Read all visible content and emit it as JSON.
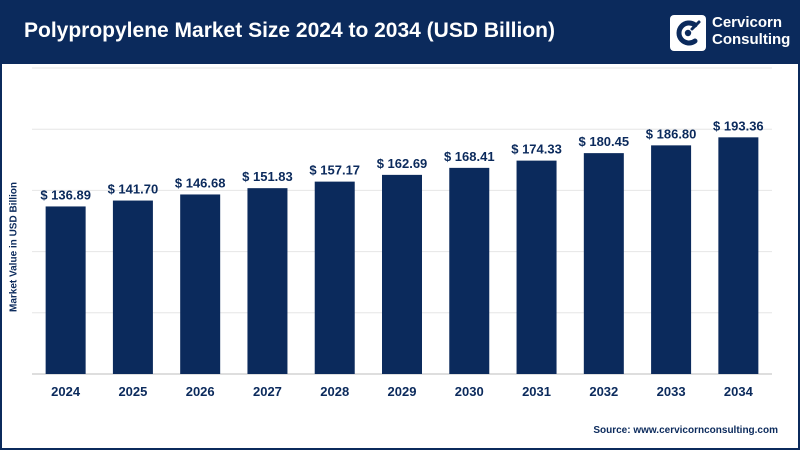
{
  "header": {
    "title": "Polypropylene Market Size 2024 to 2034 (USD Billion)",
    "logo_line1": "Cervicorn",
    "logo_line2": "Consulting",
    "logo_icon": "cervicorn-logo-icon"
  },
  "source": "Source: www.cervicornconsulting.com",
  "colors": {
    "bar": "#0b2a5c",
    "header": "#0b2a5c",
    "grid": "#e6e6e6"
  },
  "chart_data": {
    "type": "bar",
    "categories": [
      "2024",
      "2025",
      "2026",
      "2027",
      "2028",
      "2029",
      "2030",
      "2031",
      "2032",
      "2033",
      "2034"
    ],
    "values": [
      136.89,
      141.7,
      146.68,
      151.83,
      157.17,
      162.69,
      168.41,
      174.33,
      180.45,
      186.8,
      193.36
    ],
    "data_labels": [
      "$ 136.89",
      "$ 141.70",
      "$ 146.68",
      "$ 151.83",
      "$ 157.17",
      "$ 162.69",
      "$ 168.41",
      "$ 174.33",
      "$ 180.45",
      "$ 186.80",
      "$ 193.36"
    ],
    "title": "Polypropylene Market Size 2024 to 2034 (USD Billion)",
    "xlabel": "",
    "ylabel": "Market Value in USD Billion",
    "ylim": [
      0,
      250
    ],
    "grid": true,
    "legend": "none"
  }
}
